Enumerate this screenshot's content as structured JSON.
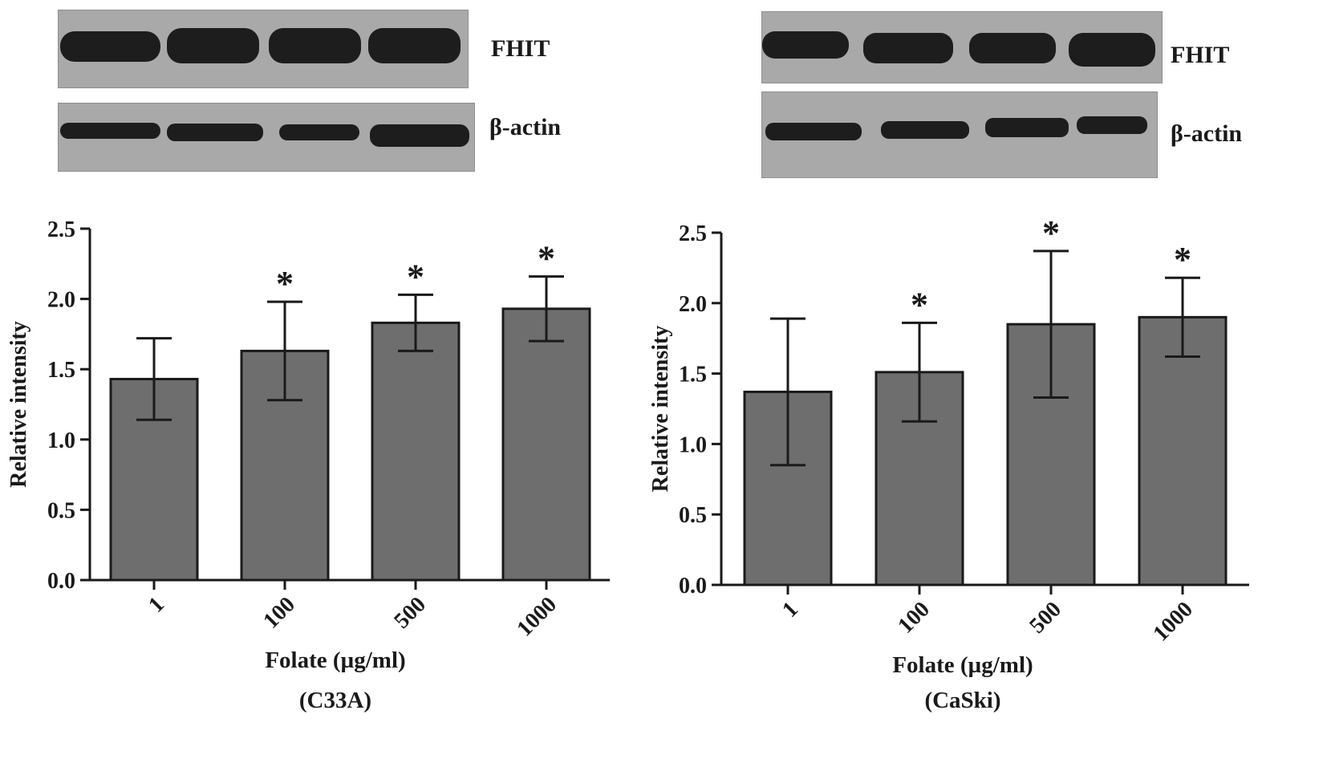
{
  "colors": {
    "bar_fill": "#6e6e6e",
    "ink": "#1a1a1a",
    "blot_bg": "#a9a9a9",
    "band": "#1d1d1d"
  },
  "panels": [
    {
      "blots": {
        "top_label": "FHIT",
        "bottom_label": "β-actin"
      },
      "chart_data": {
        "type": "bar",
        "categories": [
          "1",
          "100",
          "500",
          "1000"
        ],
        "values": [
          1.43,
          1.63,
          1.83,
          1.93
        ],
        "error": [
          0.29,
          0.35,
          0.2,
          0.23
        ],
        "significance": [
          "",
          "*",
          "*",
          "*"
        ],
        "ylabel": "Relative intensity",
        "xlabel": "Folate (µg/ml)",
        "caption": "(C33A)",
        "ylim": [
          0,
          2.5
        ],
        "yticks": [
          "0.0",
          "0.5",
          "1.0",
          "1.5",
          "2.0",
          "2.5"
        ],
        "grid": false
      }
    },
    {
      "blots": {
        "top_label": "FHIT",
        "bottom_label": "β-actin"
      },
      "chart_data": {
        "type": "bar",
        "categories": [
          "1",
          "100",
          "500",
          "1000"
        ],
        "values": [
          1.37,
          1.51,
          1.85,
          1.9
        ],
        "error": [
          0.52,
          0.35,
          0.52,
          0.28
        ],
        "significance": [
          "",
          "*",
          "*",
          "*"
        ],
        "ylabel": "Relative intensity",
        "xlabel": "Folate (µg/ml)",
        "caption": "(CaSki)",
        "ylim": [
          0,
          2.5
        ],
        "yticks": [
          "0.0",
          "0.5",
          "1.0",
          "1.5",
          "2.0",
          "2.5"
        ],
        "grid": false
      }
    }
  ]
}
